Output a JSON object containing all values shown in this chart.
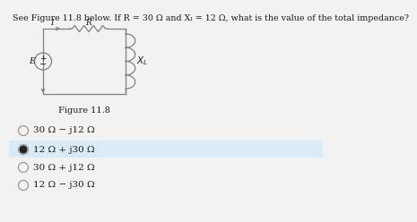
{
  "title": "See Figure 11.8 below. If R = 30 Ω and Xₗ = 12 Ω, what is the value of the total impedance?",
  "figure_label": "Figure 11.8",
  "options": [
    "30 Ω − j12 Ω",
    "12 Ω + j30 Ω",
    "30 Ω + j12 Ω",
    "12 Ω − j30 Ω"
  ],
  "selected_option": 1,
  "bg_color": "#f2f2f2",
  "selected_bg": "#daeaf7",
  "text_color": "#1a1a1a",
  "circuit_color": "#808080",
  "font_size_title": 6.8,
  "font_size_options": 7.5,
  "font_size_fig_label": 7.0
}
